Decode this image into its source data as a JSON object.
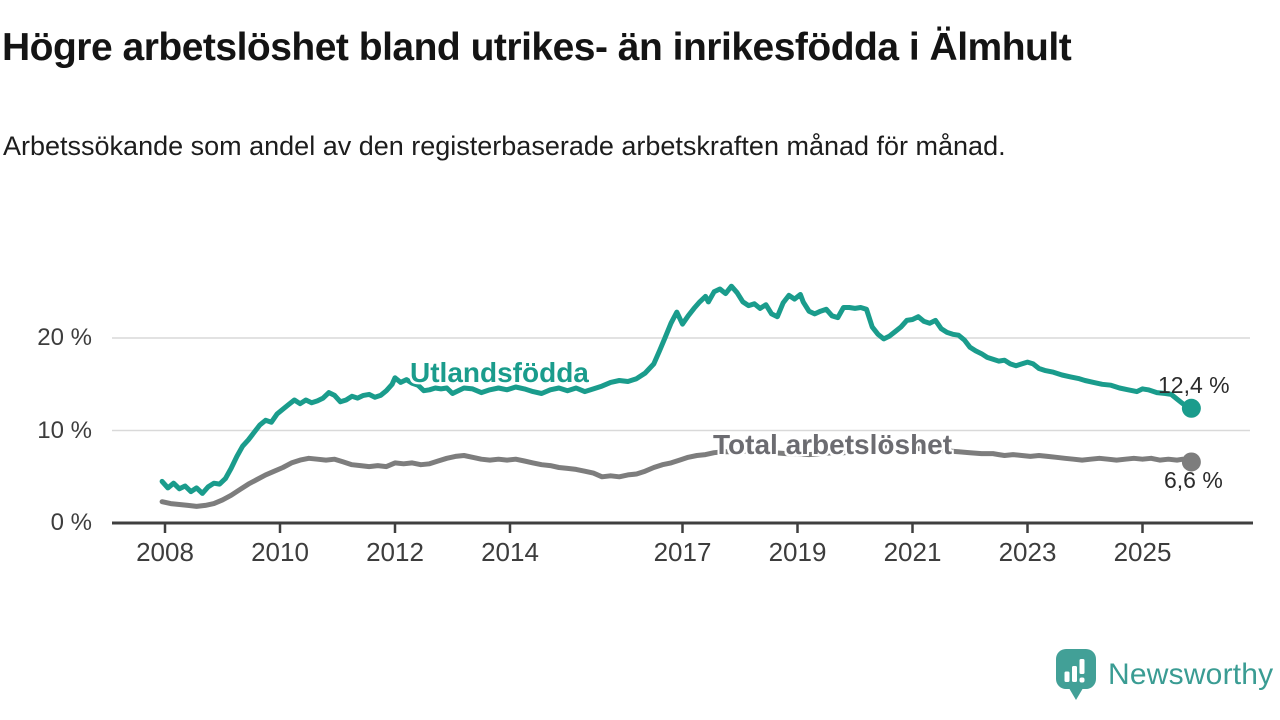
{
  "header": {
    "title": "Högre arbetslöshet bland utrikes- än inrikesfödda i Älmhult",
    "subtitle": "Arbetssökande som andel av den registerbaserade arbetskraften månad för månad."
  },
  "footer": {
    "brand": "Newsworthy"
  },
  "colors": {
    "utlandsfodda": "#1a9c8c",
    "total": "#7d7d7d",
    "axis": "#3f3f3f",
    "gridline": "#d9d9d9",
    "logo_teal": "#42a097"
  },
  "chart_data": {
    "type": "line",
    "title": "Högre arbetslöshet bland utrikes- än inrikesfödda i Älmhult",
    "subtitle": "Arbetssökande som andel av den registerbaserade arbetskraften månad för månad.",
    "unit": "%",
    "grid": "horizontal",
    "legend_position": "inline-labels",
    "ylim": [
      0,
      27
    ],
    "xlim": [
      2007.1,
      2026.9
    ],
    "y_ticks": [
      {
        "value": 0,
        "label": "0 %"
      },
      {
        "value": 10,
        "label": "10 %"
      },
      {
        "value": 20,
        "label": "20 %"
      }
    ],
    "x_ticks": [
      {
        "year": 2008,
        "label": "2008"
      },
      {
        "year": 2010,
        "label": "2010"
      },
      {
        "year": 2012,
        "label": "2012"
      },
      {
        "year": 2014,
        "label": "2014"
      },
      {
        "year": 2017,
        "label": "2017"
      },
      {
        "year": 2019,
        "label": "2019"
      },
      {
        "year": 2021,
        "label": "2021"
      },
      {
        "year": 2023,
        "label": "2023"
      },
      {
        "year": 2025,
        "label": "2025"
      }
    ],
    "series": [
      {
        "name": "Utlandsfödda",
        "color": "#1a9c8c",
        "end_value": 12.4,
        "end_label": "12,4 %",
        "points": [
          [
            2007.95,
            4.5
          ],
          [
            2008.05,
            3.8
          ],
          [
            2008.15,
            4.3
          ],
          [
            2008.25,
            3.7
          ],
          [
            2008.35,
            4.0
          ],
          [
            2008.45,
            3.4
          ],
          [
            2008.55,
            3.8
          ],
          [
            2008.65,
            3.2
          ],
          [
            2008.75,
            3.9
          ],
          [
            2008.85,
            4.3
          ],
          [
            2008.95,
            4.2
          ],
          [
            2009.05,
            4.8
          ],
          [
            2009.15,
            5.9
          ],
          [
            2009.25,
            7.2
          ],
          [
            2009.35,
            8.3
          ],
          [
            2009.45,
            9.0
          ],
          [
            2009.55,
            9.8
          ],
          [
            2009.65,
            10.6
          ],
          [
            2009.75,
            11.1
          ],
          [
            2009.85,
            10.9
          ],
          [
            2009.95,
            11.8
          ],
          [
            2010.05,
            12.3
          ],
          [
            2010.15,
            12.8
          ],
          [
            2010.25,
            13.3
          ],
          [
            2010.35,
            12.9
          ],
          [
            2010.45,
            13.3
          ],
          [
            2010.55,
            13.0
          ],
          [
            2010.65,
            13.2
          ],
          [
            2010.75,
            13.5
          ],
          [
            2010.85,
            14.1
          ],
          [
            2010.95,
            13.8
          ],
          [
            2011.05,
            13.1
          ],
          [
            2011.15,
            13.3
          ],
          [
            2011.25,
            13.7
          ],
          [
            2011.35,
            13.5
          ],
          [
            2011.45,
            13.8
          ],
          [
            2011.55,
            13.9
          ],
          [
            2011.65,
            13.6
          ],
          [
            2011.75,
            13.8
          ],
          [
            2011.85,
            14.3
          ],
          [
            2011.95,
            15.0
          ],
          [
            2012.0,
            15.7
          ],
          [
            2012.1,
            15.2
          ],
          [
            2012.2,
            15.5
          ],
          [
            2012.3,
            15.1
          ],
          [
            2012.4,
            14.9
          ],
          [
            2012.5,
            14.3
          ],
          [
            2012.6,
            14.4
          ],
          [
            2012.7,
            14.6
          ],
          [
            2012.8,
            14.5
          ],
          [
            2012.9,
            14.6
          ],
          [
            2013.0,
            14.0
          ],
          [
            2013.1,
            14.3
          ],
          [
            2013.2,
            14.6
          ],
          [
            2013.35,
            14.5
          ],
          [
            2013.5,
            14.1
          ],
          [
            2013.65,
            14.4
          ],
          [
            2013.8,
            14.6
          ],
          [
            2013.95,
            14.4
          ],
          [
            2014.1,
            14.7
          ],
          [
            2014.25,
            14.5
          ],
          [
            2014.4,
            14.2
          ],
          [
            2014.55,
            14.0
          ],
          [
            2014.7,
            14.4
          ],
          [
            2014.85,
            14.6
          ],
          [
            2015.0,
            14.3
          ],
          [
            2015.15,
            14.6
          ],
          [
            2015.3,
            14.2
          ],
          [
            2015.45,
            14.5
          ],
          [
            2015.6,
            14.8
          ],
          [
            2015.75,
            15.2
          ],
          [
            2015.9,
            15.4
          ],
          [
            2016.05,
            15.3
          ],
          [
            2016.2,
            15.6
          ],
          [
            2016.35,
            16.2
          ],
          [
            2016.5,
            17.2
          ],
          [
            2016.6,
            18.6
          ],
          [
            2016.7,
            20.1
          ],
          [
            2016.8,
            21.6
          ],
          [
            2016.9,
            22.8
          ],
          [
            2017.0,
            21.5
          ],
          [
            2017.1,
            22.4
          ],
          [
            2017.2,
            23.2
          ],
          [
            2017.3,
            23.9
          ],
          [
            2017.4,
            24.5
          ],
          [
            2017.45,
            23.9
          ],
          [
            2017.55,
            25.0
          ],
          [
            2017.65,
            25.3
          ],
          [
            2017.75,
            24.8
          ],
          [
            2017.85,
            25.6
          ],
          [
            2017.95,
            24.9
          ],
          [
            2018.05,
            23.9
          ],
          [
            2018.15,
            23.5
          ],
          [
            2018.25,
            23.7
          ],
          [
            2018.35,
            23.2
          ],
          [
            2018.45,
            23.6
          ],
          [
            2018.55,
            22.6
          ],
          [
            2018.65,
            22.3
          ],
          [
            2018.75,
            23.8
          ],
          [
            2018.85,
            24.6
          ],
          [
            2018.95,
            24.2
          ],
          [
            2019.05,
            24.7
          ],
          [
            2019.1,
            23.9
          ],
          [
            2019.2,
            22.9
          ],
          [
            2019.3,
            22.6
          ],
          [
            2019.4,
            22.9
          ],
          [
            2019.5,
            23.1
          ],
          [
            2019.6,
            22.4
          ],
          [
            2019.7,
            22.2
          ],
          [
            2019.8,
            23.3
          ],
          [
            2019.9,
            23.3
          ],
          [
            2020.0,
            23.2
          ],
          [
            2020.1,
            23.3
          ],
          [
            2020.2,
            23.1
          ],
          [
            2020.3,
            21.2
          ],
          [
            2020.4,
            20.4
          ],
          [
            2020.5,
            19.9
          ],
          [
            2020.6,
            20.2
          ],
          [
            2020.7,
            20.7
          ],
          [
            2020.8,
            21.2
          ],
          [
            2020.9,
            21.9
          ],
          [
            2021.0,
            22.0
          ],
          [
            2021.1,
            22.3
          ],
          [
            2021.2,
            21.8
          ],
          [
            2021.3,
            21.6
          ],
          [
            2021.4,
            21.9
          ],
          [
            2021.5,
            21.0
          ],
          [
            2021.6,
            20.6
          ],
          [
            2021.7,
            20.4
          ],
          [
            2021.8,
            20.3
          ],
          [
            2021.9,
            19.8
          ],
          [
            2022.0,
            19.0
          ],
          [
            2022.1,
            18.6
          ],
          [
            2022.2,
            18.3
          ],
          [
            2022.3,
            17.9
          ],
          [
            2022.4,
            17.7
          ],
          [
            2022.5,
            17.5
          ],
          [
            2022.6,
            17.6
          ],
          [
            2022.7,
            17.2
          ],
          [
            2022.8,
            17.0
          ],
          [
            2022.9,
            17.2
          ],
          [
            2023.0,
            17.4
          ],
          [
            2023.1,
            17.2
          ],
          [
            2023.2,
            16.7
          ],
          [
            2023.3,
            16.5
          ],
          [
            2023.45,
            16.3
          ],
          [
            2023.6,
            16.0
          ],
          [
            2023.75,
            15.8
          ],
          [
            2023.9,
            15.6
          ],
          [
            2024.0,
            15.4
          ],
          [
            2024.15,
            15.2
          ],
          [
            2024.3,
            15.0
          ],
          [
            2024.45,
            14.9
          ],
          [
            2024.6,
            14.6
          ],
          [
            2024.75,
            14.4
          ],
          [
            2024.9,
            14.2
          ],
          [
            2025.0,
            14.5
          ],
          [
            2025.1,
            14.4
          ],
          [
            2025.25,
            14.1
          ],
          [
            2025.4,
            14.0
          ],
          [
            2025.5,
            13.9
          ],
          [
            2025.6,
            13.4
          ],
          [
            2025.7,
            12.9
          ],
          [
            2025.85,
            12.4
          ]
        ]
      },
      {
        "name": "Total arbetslöshet",
        "color": "#7d7d7d",
        "end_value": 6.6,
        "end_label": "6,6 %",
        "points": [
          [
            2007.95,
            2.3
          ],
          [
            2008.1,
            2.1
          ],
          [
            2008.25,
            2.0
          ],
          [
            2008.4,
            1.9
          ],
          [
            2008.55,
            1.8
          ],
          [
            2008.7,
            1.9
          ],
          [
            2008.85,
            2.1
          ],
          [
            2009.0,
            2.5
          ],
          [
            2009.15,
            3.0
          ],
          [
            2009.3,
            3.6
          ],
          [
            2009.45,
            4.2
          ],
          [
            2009.6,
            4.7
          ],
          [
            2009.75,
            5.2
          ],
          [
            2009.9,
            5.6
          ],
          [
            2010.05,
            6.0
          ],
          [
            2010.2,
            6.5
          ],
          [
            2010.35,
            6.8
          ],
          [
            2010.5,
            7.0
          ],
          [
            2010.65,
            6.9
          ],
          [
            2010.8,
            6.8
          ],
          [
            2010.95,
            6.9
          ],
          [
            2011.1,
            6.6
          ],
          [
            2011.25,
            6.3
          ],
          [
            2011.4,
            6.2
          ],
          [
            2011.55,
            6.1
          ],
          [
            2011.7,
            6.2
          ],
          [
            2011.85,
            6.1
          ],
          [
            2012.0,
            6.5
          ],
          [
            2012.15,
            6.4
          ],
          [
            2012.3,
            6.5
          ],
          [
            2012.45,
            6.3
          ],
          [
            2012.6,
            6.4
          ],
          [
            2012.75,
            6.7
          ],
          [
            2012.9,
            7.0
          ],
          [
            2013.05,
            7.2
          ],
          [
            2013.2,
            7.3
          ],
          [
            2013.35,
            7.1
          ],
          [
            2013.5,
            6.9
          ],
          [
            2013.65,
            6.8
          ],
          [
            2013.8,
            6.9
          ],
          [
            2013.95,
            6.8
          ],
          [
            2014.1,
            6.9
          ],
          [
            2014.25,
            6.7
          ],
          [
            2014.4,
            6.5
          ],
          [
            2014.55,
            6.3
          ],
          [
            2014.7,
            6.2
          ],
          [
            2014.85,
            6.0
          ],
          [
            2015.0,
            5.9
          ],
          [
            2015.15,
            5.8
          ],
          [
            2015.3,
            5.6
          ],
          [
            2015.45,
            5.4
          ],
          [
            2015.6,
            5.0
          ],
          [
            2015.75,
            5.1
          ],
          [
            2015.9,
            5.0
          ],
          [
            2016.05,
            5.2
          ],
          [
            2016.2,
            5.3
          ],
          [
            2016.35,
            5.6
          ],
          [
            2016.5,
            6.0
          ],
          [
            2016.65,
            6.3
          ],
          [
            2016.8,
            6.5
          ],
          [
            2016.95,
            6.8
          ],
          [
            2017.1,
            7.1
          ],
          [
            2017.25,
            7.3
          ],
          [
            2017.4,
            7.4
          ],
          [
            2017.55,
            7.6
          ],
          [
            2017.7,
            7.7
          ],
          [
            2017.85,
            7.7
          ],
          [
            2018.0,
            7.8
          ],
          [
            2018.2,
            7.7
          ],
          [
            2018.4,
            7.6
          ],
          [
            2018.6,
            7.6
          ],
          [
            2018.8,
            7.5
          ],
          [
            2019.0,
            7.5
          ],
          [
            2019.2,
            7.4
          ],
          [
            2019.4,
            7.5
          ],
          [
            2019.6,
            7.6
          ],
          [
            2019.8,
            7.6
          ],
          [
            2020.0,
            7.7
          ],
          [
            2020.2,
            8.0
          ],
          [
            2020.4,
            8.2
          ],
          [
            2020.6,
            8.3
          ],
          [
            2020.8,
            8.2
          ],
          [
            2021.0,
            8.1
          ],
          [
            2021.2,
            8.0
          ],
          [
            2021.4,
            7.9
          ],
          [
            2021.6,
            7.8
          ],
          [
            2021.8,
            7.7
          ],
          [
            2022.0,
            7.6
          ],
          [
            2022.2,
            7.5
          ],
          [
            2022.4,
            7.5
          ],
          [
            2022.5,
            7.4
          ],
          [
            2022.6,
            7.3
          ],
          [
            2022.75,
            7.4
          ],
          [
            2022.9,
            7.3
          ],
          [
            2023.05,
            7.2
          ],
          [
            2023.2,
            7.3
          ],
          [
            2023.35,
            7.2
          ],
          [
            2023.5,
            7.1
          ],
          [
            2023.65,
            7.0
          ],
          [
            2023.8,
            6.9
          ],
          [
            2023.95,
            6.8
          ],
          [
            2024.1,
            6.9
          ],
          [
            2024.25,
            7.0
          ],
          [
            2024.4,
            6.9
          ],
          [
            2024.55,
            6.8
          ],
          [
            2024.7,
            6.9
          ],
          [
            2024.85,
            7.0
          ],
          [
            2025.0,
            6.9
          ],
          [
            2025.15,
            7.0
          ],
          [
            2025.3,
            6.8
          ],
          [
            2025.45,
            6.9
          ],
          [
            2025.6,
            6.8
          ],
          [
            2025.7,
            6.9
          ],
          [
            2025.85,
            6.6
          ]
        ]
      }
    ]
  }
}
